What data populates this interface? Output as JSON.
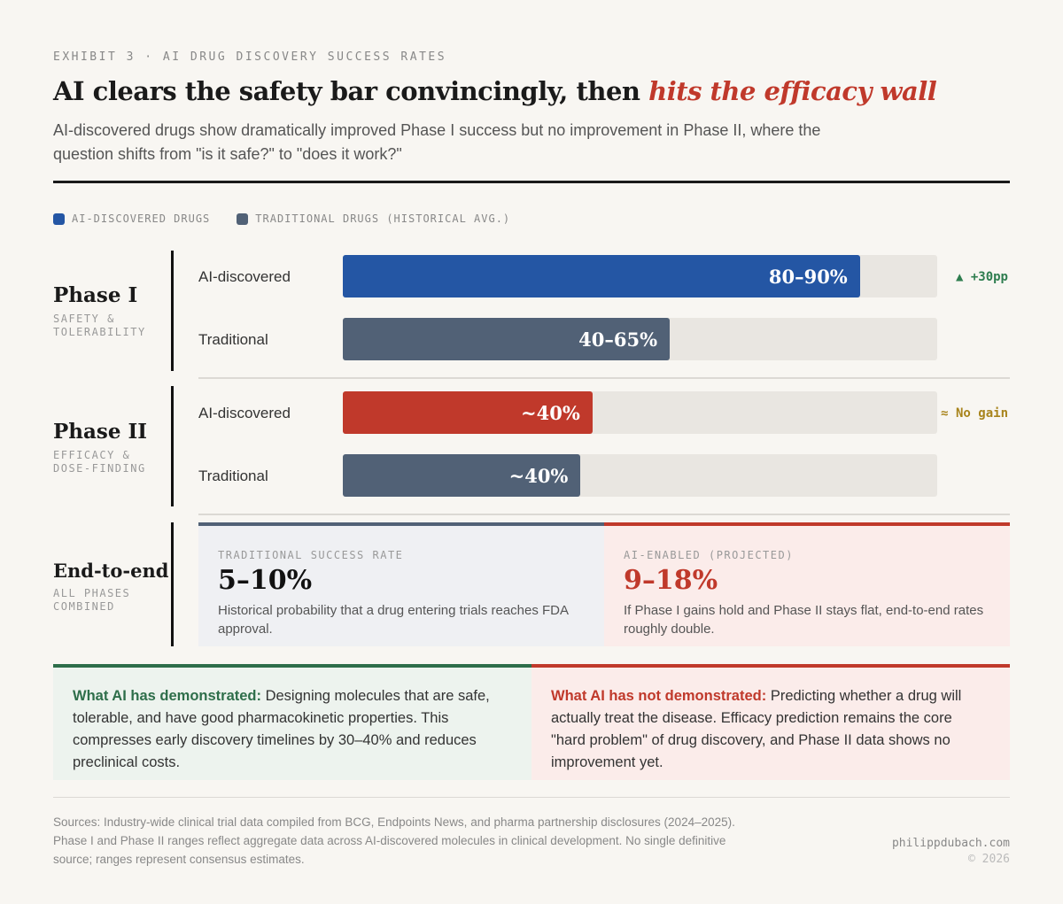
{
  "header": {
    "eyebrow": "EXHIBIT 3 · AI DRUG DISCOVERY SUCCESS RATES",
    "title_plain": "AI clears the safety bar convincingly, then ",
    "title_highlight": "hits the efficacy wall",
    "subtitle": "AI-discovered drugs show dramatically improved Phase I success but no improvement in Phase II, where the question shifts from \"is it safe?\" to \"does it work?\""
  },
  "colors": {
    "ai": "#2456a4",
    "traditional": "#516176",
    "ai_phase2": "#c0392b",
    "track": "#e9e6e1",
    "positive": "#2e7d4f",
    "neutral": "#a8841c"
  },
  "chart_data": {
    "type": "bar",
    "orientation": "horizontal",
    "legend": [
      {
        "name": "AI-DISCOVERED DRUGS",
        "color": "#2456a4"
      },
      {
        "name": "TRADITIONAL DRUGS (HISTORICAL AVG.)",
        "color": "#516176"
      }
    ],
    "legend_position": "top-left",
    "xlim": [
      0,
      100
    ],
    "groups": [
      {
        "phase": "Phase I",
        "sub": "SAFETY & TOLERABILITY",
        "note": "▲ +30pp",
        "note_color": "#2e7d4f",
        "bars": [
          {
            "label": "AI-discovered",
            "value_label": "80–90%",
            "value": 87,
            "color": "#2456a4"
          },
          {
            "label": "Traditional",
            "value_label": "40–65%",
            "value": 55,
            "color": "#516176"
          }
        ]
      },
      {
        "phase": "Phase II",
        "sub": "EFFICACY & DOSE-FINDING",
        "note": "≈ No gain",
        "note_color": "#a8841c",
        "bars": [
          {
            "label": "AI-discovered",
            "value_label": "~40%",
            "value": 42,
            "color": "#c0392b"
          },
          {
            "label": "Traditional",
            "value_label": "~40%",
            "value": 40,
            "color": "#516176"
          }
        ]
      }
    ]
  },
  "end_to_end": {
    "phase": "End-to-end",
    "sub": "ALL PHASES COMBINED",
    "traditional": {
      "label": "TRADITIONAL SUCCESS RATE",
      "value": "5–10%",
      "desc": "Historical probability that a drug entering trials reaches FDA approval."
    },
    "ai": {
      "label": "AI-ENABLED (PROJECTED)",
      "value": "9–18%",
      "desc": "If Phase I gains hold and Phase II stays flat, end-to-end rates roughly double."
    }
  },
  "takeaways": {
    "demonstrated": {
      "lead": "What AI has demonstrated:",
      "text": " Designing molecules that are safe, tolerable, and have good pharmacokinetic properties. This compresses early discovery timelines by 30–40% and reduces preclinical costs."
    },
    "not_demonstrated": {
      "lead": "What AI has not demonstrated:",
      "text": " Predicting whether a drug will actually treat the disease. Efficacy prediction remains the core \"hard problem\" of drug discovery, and Phase II data shows no improvement yet."
    }
  },
  "footer": {
    "sources": "Sources: Industry-wide clinical trial data compiled from BCG, Endpoints News, and pharma partnership disclosures (2024–2025). Phase I and Phase II ranges reflect aggregate data across AI-discovered molecules in clinical development. No single definitive source; ranges represent consensus estimates.",
    "site": "philippdubach.com",
    "copyright": "© 2026"
  }
}
